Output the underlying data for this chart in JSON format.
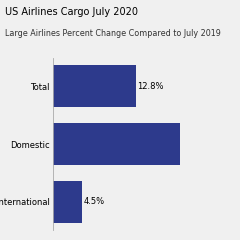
{
  "title": "US Airlines Cargo July 2020",
  "subtitle": "Large Airlines Percent Change Compared to July 2019",
  "categories": [
    "Total",
    "Domestic",
    "International"
  ],
  "values": [
    12.8,
    19.5,
    4.5
  ],
  "bar_color": "#2d3a8c",
  "value_labels": [
    "12.8%",
    "",
    "4.5%"
  ],
  "background_color": "#f0f0f0",
  "title_fontsize": 7.0,
  "subtitle_fontsize": 5.8,
  "label_fontsize": 6.0,
  "value_fontsize": 6.0
}
